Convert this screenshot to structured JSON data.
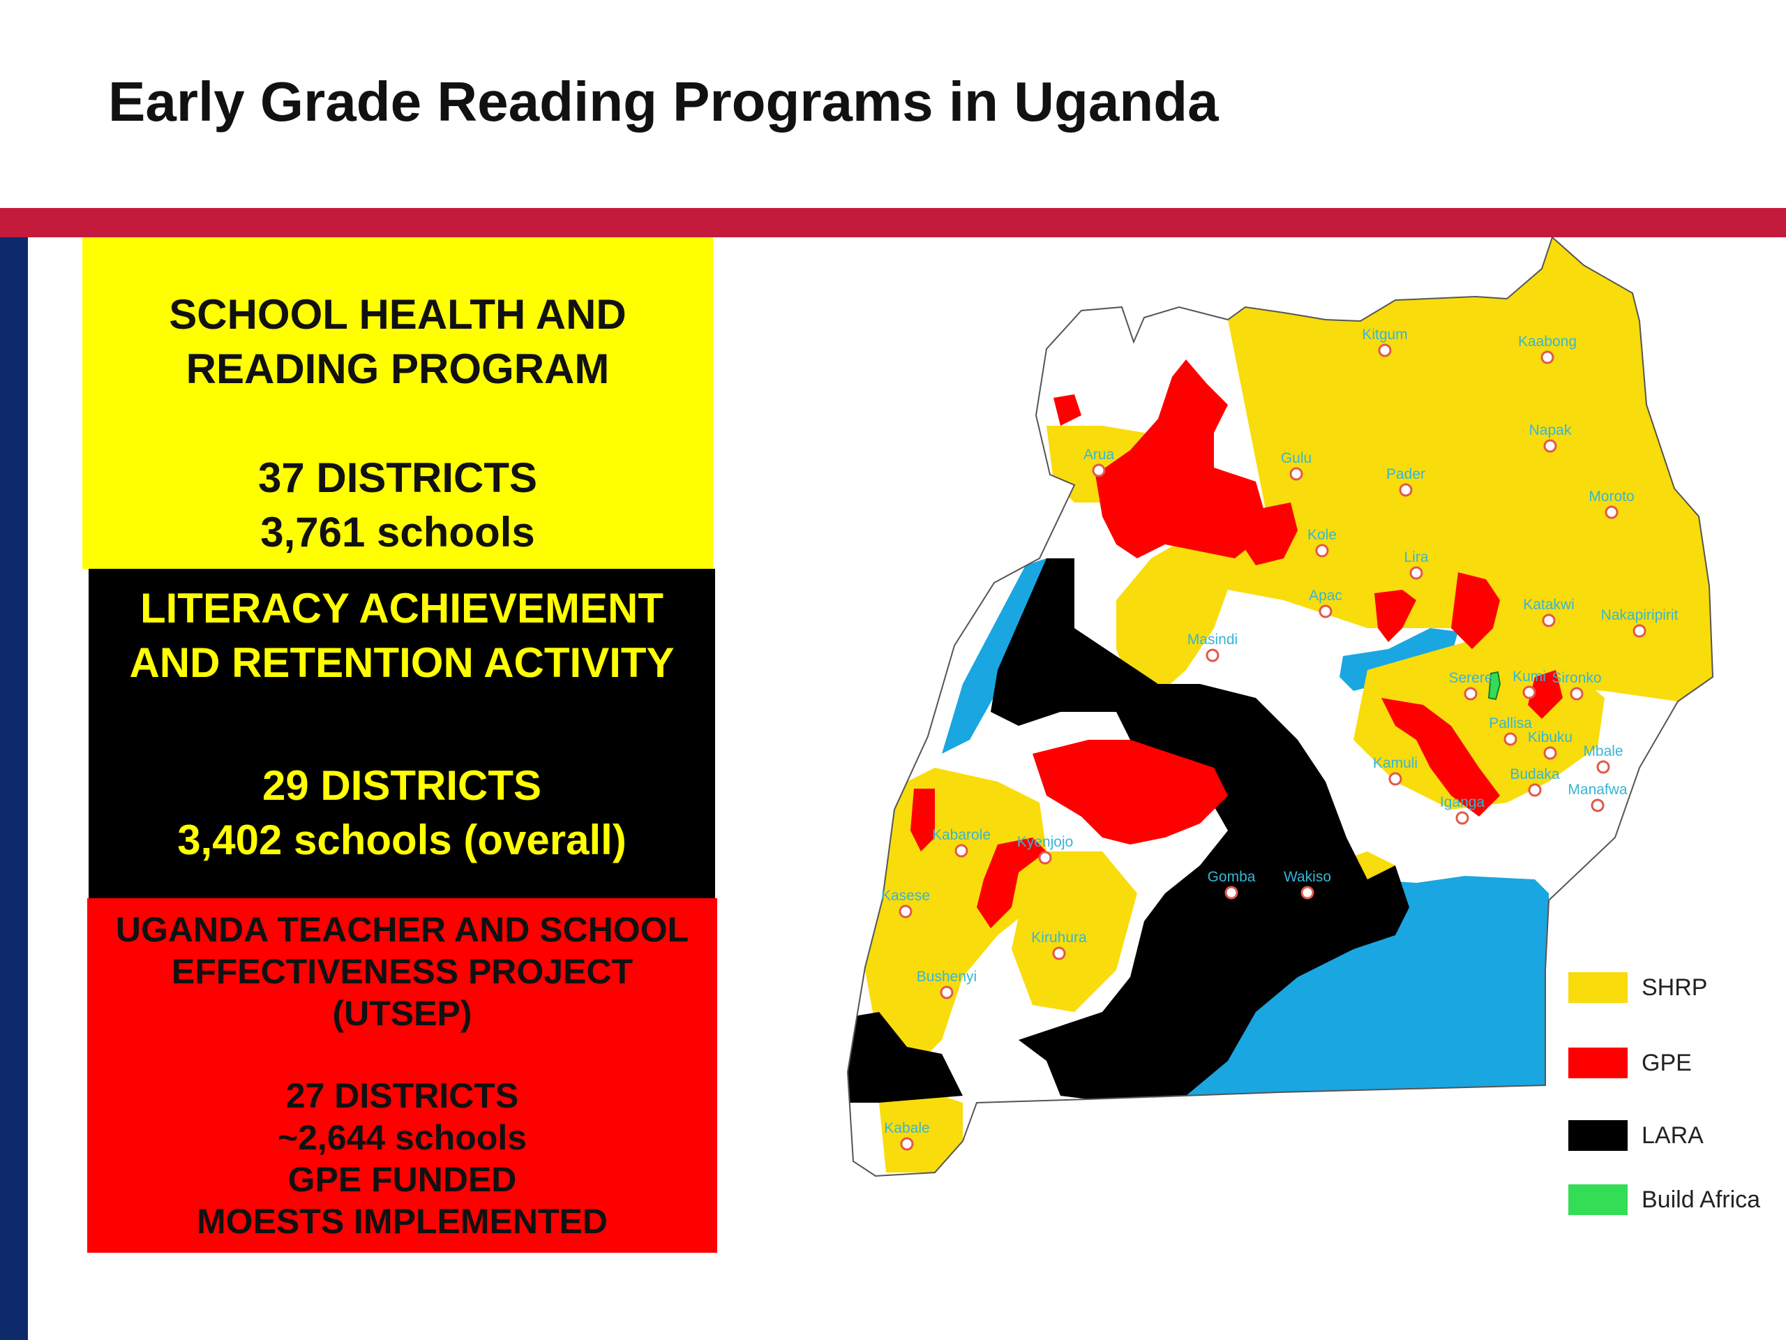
{
  "title": "Early Grade Reading Programs in Uganda",
  "colors": {
    "shrp": "#f9dc0b",
    "gpe": "#ff0000",
    "lara": "#000000",
    "build_africa": "#33dd55",
    "lake": "#1aa6e0",
    "banner": "#c41a3c",
    "side_bar": "#0e2a6b"
  },
  "panels": {
    "shrp": {
      "name_line1": "SCHOOL HEALTH AND",
      "name_line2": "READING PROGRAM",
      "districts": "37 DISTRICTS",
      "schools": "3,761 schools"
    },
    "lara": {
      "name_line1": "LITERACY ACHIEVEMENT",
      "name_line2": "AND RETENTION ACTIVITY",
      "districts": "29 DISTRICTS",
      "schools": "3,402 schools (overall)"
    },
    "utsep": {
      "name_line1": "UGANDA  TEACHER AND SCHOOL",
      "name_line2": "EFFECTIVENESS PROJECT",
      "name_line3": "(UTSEP)",
      "districts": "27 DISTRICTS",
      "schools": "~2,644 schools",
      "funding": "GPE FUNDED",
      "implementer": "MOESTS IMPLEMENTED"
    }
  },
  "map": {
    "towns": [
      "Kitgum",
      "Kaabong",
      "Napak",
      "Arua",
      "Gulu",
      "Pader",
      "Moroto",
      "Kole",
      "Lira",
      "Katakwi",
      "Nakapiripirit",
      "Masindi",
      "Apac",
      "Serere",
      "Kumi",
      "Sironko",
      "Pallisa",
      "Kibuku",
      "Mbale",
      "Budaka",
      "Manafwa",
      "Kamuli",
      "Iganga",
      "Kabarole",
      "Kyenjojo",
      "Gomba",
      "Wakiso",
      "Kasese",
      "Kiruhura",
      "Bushenyi",
      "Kabale"
    ]
  },
  "legend": [
    {
      "label": "SHRP",
      "color": "#f9dc0b"
    },
    {
      "label": "GPE",
      "color": "#ff0000"
    },
    {
      "label": "LARA",
      "color": "#000000"
    },
    {
      "label": "Build Africa",
      "color": "#33dd55"
    }
  ]
}
